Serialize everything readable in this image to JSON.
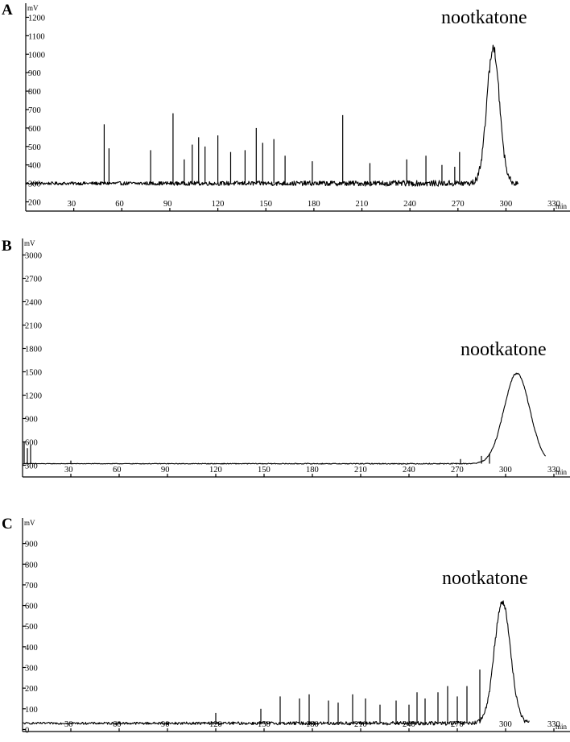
{
  "chart_data": [
    {
      "type": "line",
      "panel": "A",
      "ylabel": "mV",
      "xlabel": "min",
      "xlim": [
        0,
        340
      ],
      "ylim": [
        150,
        1250
      ],
      "xticks": [
        30,
        60,
        90,
        120,
        150,
        180,
        210,
        240,
        270,
        300,
        330
      ],
      "yticks": [
        200,
        300,
        400,
        500,
        600,
        700,
        800,
        900,
        1000,
        1100,
        1200
      ],
      "baseline": 300,
      "noise": 25,
      "trace_end": 308,
      "peak_annotation": "nootkatone",
      "peak": {
        "center": 292,
        "height": 1030,
        "width": 4
      },
      "spikes": [
        [
          49,
          620
        ],
        [
          52,
          490
        ],
        [
          78,
          480
        ],
        [
          92,
          680
        ],
        [
          99,
          430
        ],
        [
          104,
          510
        ],
        [
          108,
          550
        ],
        [
          112,
          500
        ],
        [
          120,
          560
        ],
        [
          128,
          470
        ],
        [
          137,
          480
        ],
        [
          144,
          600
        ],
        [
          148,
          520
        ],
        [
          155,
          540
        ],
        [
          162,
          450
        ],
        [
          179,
          420
        ],
        [
          198,
          670
        ],
        [
          215,
          410
        ],
        [
          238,
          430
        ],
        [
          250,
          450
        ],
        [
          260,
          400
        ],
        [
          268,
          390
        ],
        [
          271,
          470
        ]
      ]
    },
    {
      "type": "line",
      "panel": "B",
      "ylabel": "mV",
      "xlabel": "min",
      "xlim": [
        0,
        340
      ],
      "ylim": [
        150,
        3150
      ],
      "xticks": [
        30,
        60,
        90,
        120,
        150,
        180,
        210,
        240,
        270,
        300,
        330
      ],
      "yticks": [
        300,
        600,
        900,
        1200,
        1500,
        1800,
        2100,
        2400,
        2700,
        3000
      ],
      "baseline": 320,
      "noise": 10,
      "trace_end": 325,
      "peak_annotation": "nootkatone",
      "peak": {
        "center": 307,
        "height": 1480,
        "width": 8
      },
      "spikes": [
        [
          1,
          600
        ],
        [
          3,
          520
        ],
        [
          5,
          560
        ],
        [
          30,
          360
        ],
        [
          272,
          380
        ],
        [
          285,
          420
        ],
        [
          290,
          450
        ]
      ]
    },
    {
      "type": "line",
      "panel": "C",
      "ylabel": "mV",
      "xlabel": "min",
      "xlim": [
        0,
        340
      ],
      "ylim": [
        -10,
        1000
      ],
      "xticks": [
        30,
        60,
        90,
        120,
        150,
        180,
        210,
        240,
        270,
        300,
        330
      ],
      "yticks": [
        0,
        100,
        200,
        300,
        400,
        500,
        600,
        700,
        800,
        900
      ],
      "baseline": 30,
      "noise": 15,
      "trace_end": 315,
      "peak_annotation": "nootkatone",
      "peak": {
        "center": 298,
        "height": 620,
        "width": 5
      },
      "spikes": [
        [
          120,
          80
        ],
        [
          148,
          100
        ],
        [
          160,
          160
        ],
        [
          172,
          150
        ],
        [
          178,
          170
        ],
        [
          190,
          140
        ],
        [
          196,
          130
        ],
        [
          205,
          170
        ],
        [
          213,
          150
        ],
        [
          222,
          120
        ],
        [
          232,
          140
        ],
        [
          240,
          120
        ],
        [
          245,
          180
        ],
        [
          250,
          150
        ],
        [
          258,
          180
        ],
        [
          264,
          210
        ],
        [
          270,
          160
        ],
        [
          276,
          210
        ],
        [
          284,
          290
        ]
      ]
    }
  ]
}
